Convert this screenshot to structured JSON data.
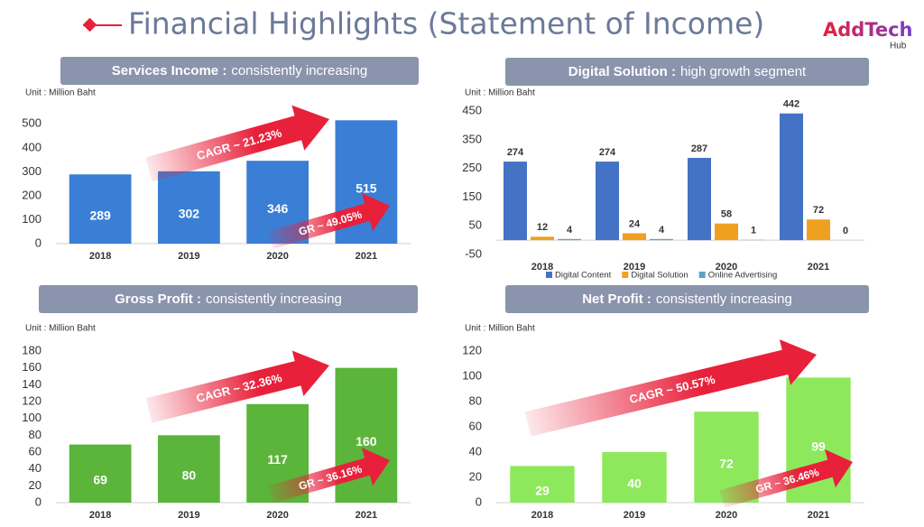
{
  "header": {
    "title": "Financial Highlights (Statement of Income)",
    "logo": "AddTech",
    "logo_sub": "Hub"
  },
  "chart_data": [
    {
      "type": "bar",
      "title": "Services Income :",
      "subtitle": "consistently increasing",
      "unit": "Unit : Million Baht",
      "categories": [
        "2018",
        "2019",
        "2020",
        "2021"
      ],
      "values": [
        289,
        302,
        346,
        515
      ],
      "color": "#3a7fd5",
      "ylim": [
        0,
        550
      ],
      "yticks": [
        0,
        100,
        200,
        300,
        400,
        500
      ],
      "annotations": [
        "CAGR ~ 21.23%",
        "GR ~ 49.05%"
      ]
    },
    {
      "type": "grouped_bar",
      "title": "Digital Solution :",
      "subtitle": "high growth segment",
      "unit": "Unit : Million Baht",
      "categories": [
        "2018",
        "2019",
        "2020",
        "2021"
      ],
      "series": [
        {
          "name": "Digital Content",
          "color": "#4472c4",
          "values": [
            274,
            274,
            287,
            442
          ]
        },
        {
          "name": "Digital Solution",
          "color": "#f0a020",
          "values": [
            12,
            24,
            58,
            72
          ]
        },
        {
          "name": "Online Advertising",
          "color": "#5ba3c8",
          "values": [
            4,
            4,
            1,
            0
          ]
        }
      ],
      "ylim": [
        -50,
        460
      ],
      "yticks": [
        -50,
        50,
        150,
        250,
        350,
        450
      ],
      "legend": "bottom"
    },
    {
      "type": "bar",
      "title": "Gross Profit :",
      "subtitle": "consistently increasing",
      "unit": "Unit : Million Baht",
      "categories": [
        "2018",
        "2019",
        "2020",
        "2021"
      ],
      "values": [
        69,
        80,
        117,
        160
      ],
      "color": "#5bb53a",
      "ylim": [
        0,
        180
      ],
      "yticks": [
        0,
        20,
        40,
        60,
        80,
        100,
        120,
        140,
        160,
        180
      ],
      "annotations": [
        "CAGR ~ 32.36%",
        "GR ~ 36.16%"
      ]
    },
    {
      "type": "bar",
      "title": "Net Profit :",
      "subtitle": "consistently increasing",
      "unit": "Unit : Million Baht",
      "categories": [
        "2018",
        "2019",
        "2020",
        "2021"
      ],
      "values": [
        29,
        40,
        72,
        99
      ],
      "color": "#8ee85c",
      "ylim": [
        0,
        120
      ],
      "yticks": [
        0,
        20,
        40,
        60,
        80,
        100,
        120
      ],
      "annotations": [
        "CAGR ~ 50.57%",
        "GR ~ 36.46%"
      ]
    }
  ]
}
